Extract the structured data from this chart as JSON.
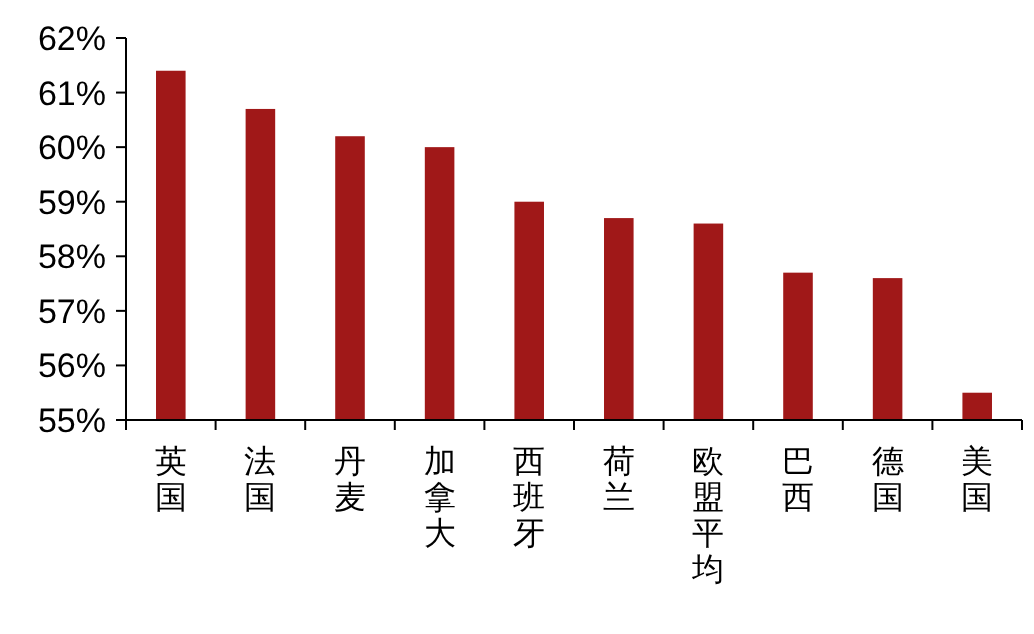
{
  "chart_data": {
    "type": "bar",
    "categories": [
      "英国",
      "法国",
      "丹麦",
      "加拿大",
      "西班牙",
      "荷兰",
      "欧盟平均",
      "巴西",
      "德国",
      "美国"
    ],
    "series": [
      {
        "color": "#a01818",
        "values": [
          61.4,
          60.7,
          60.2,
          60.0,
          59.0,
          58.7,
          58.6,
          57.7,
          57.6,
          55.5
        ]
      }
    ],
    "ylim": [
      55,
      62
    ],
    "yticks": [
      {
        "value": 55,
        "label": "55%"
      },
      {
        "value": 56,
        "label": "56%"
      },
      {
        "value": 57,
        "label": "57%"
      },
      {
        "value": 58,
        "label": "58%"
      },
      {
        "value": 59,
        "label": "59%"
      },
      {
        "value": 60,
        "label": "60%"
      },
      {
        "value": 61,
        "label": "61%"
      },
      {
        "value": 62,
        "label": "62%"
      }
    ],
    "grid": false
  }
}
